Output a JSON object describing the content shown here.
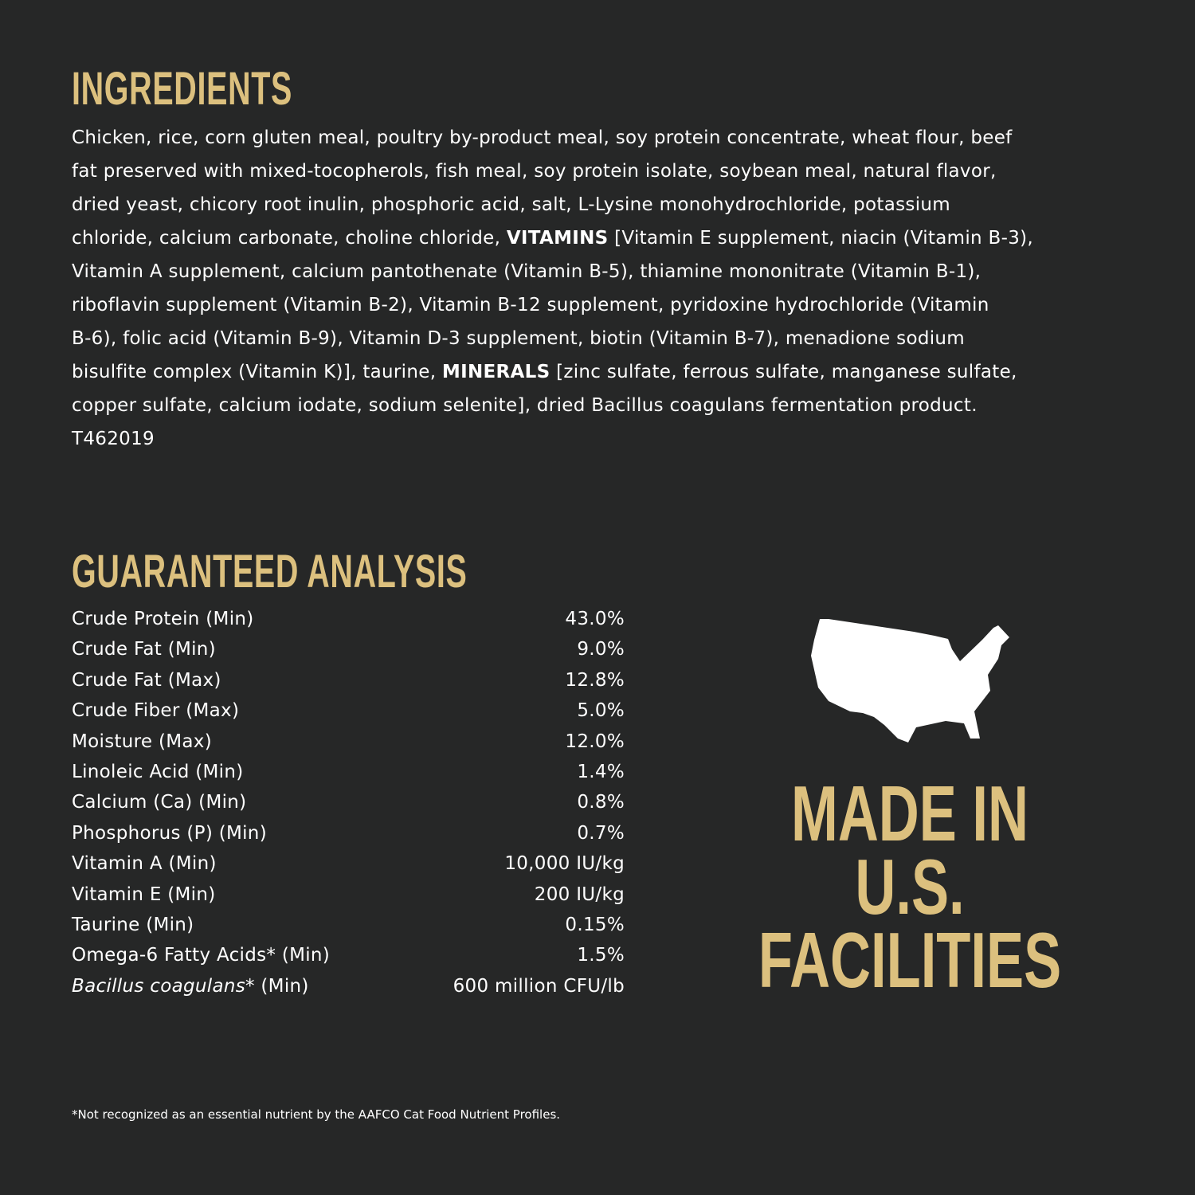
{
  "ingredients": {
    "title": "INGREDIENTS",
    "lines": [
      [
        {
          "t": "Chicken, rice, corn gluten meal, poultry by-product meal, soy protein concentrate, wheat flour, beef"
        }
      ],
      [
        {
          "t": "fat preserved with mixed-tocopherols, fish meal, soy protein isolate, soybean meal, natural flavor,"
        }
      ],
      [
        {
          "t": "dried yeast, chicory root inulin, phosphoric acid, salt, L-Lysine monohydrochloride, potassium"
        }
      ],
      [
        {
          "t": "chloride, calcium carbonate, choline chloride, "
        },
        {
          "t": "VITAMINS",
          "b": true
        },
        {
          "t": " [Vitamin E supplement, niacin (Vitamin B-3),"
        }
      ],
      [
        {
          "t": "Vitamin A supplement, calcium pantothenate (Vitamin B-5), thiamine mononitrate (Vitamin B-1),"
        }
      ],
      [
        {
          "t": "riboflavin supplement (Vitamin B-2), Vitamin B-12 supplement, pyridoxine hydrochloride (Vitamin"
        }
      ],
      [
        {
          "t": "B-6), folic acid (Vitamin B-9), Vitamin D-3 supplement, biotin (Vitamin B-7), menadione sodium"
        }
      ],
      [
        {
          "t": "bisulfite complex (Vitamin K)], taurine, "
        },
        {
          "t": "MINERALS",
          "b": true
        },
        {
          "t": " [zinc sulfate, ferrous sulfate, manganese sulfate,"
        }
      ],
      [
        {
          "t": "copper sulfate, calcium iodate, sodium selenite], dried Bacillus coagulans fermentation product."
        }
      ],
      [
        {
          "t": "T462019"
        }
      ]
    ]
  },
  "analysis": {
    "title": "GUARANTEED ANALYSIS",
    "rows": [
      {
        "label": "Crude Protein (Min)",
        "value": "43.0%"
      },
      {
        "label": "Crude Fat (Min)",
        "value": "9.0%"
      },
      {
        "label": "Crude Fat (Max)",
        "value": "12.8%"
      },
      {
        "label": "Crude Fiber (Max)",
        "value": "5.0%"
      },
      {
        "label": "Moisture (Max)",
        "value": "12.0%"
      },
      {
        "label": "Linoleic Acid (Min)",
        "value": "1.4%"
      },
      {
        "label": "Calcium (Ca) (Min)",
        "value": "0.8%"
      },
      {
        "label": "Phosphorus (P) (Min)",
        "value": "0.7%"
      },
      {
        "label": "Vitamin A (Min)",
        "value": "10,000 IU/kg"
      },
      {
        "label": "Vitamin E (Min)",
        "value": "200 IU/kg"
      },
      {
        "label": "Taurine (Min)",
        "value": "0.15%"
      },
      {
        "label": "Omega-6 Fatty Acids* (Min)",
        "value": "1.5%"
      },
      {
        "label": "Bacillus coagulans",
        "label_suffix": "* (Min)",
        "value": "600 million CFU/lb",
        "italic": true
      }
    ]
  },
  "badge": {
    "icon": "usa-map-icon",
    "lines": [
      "MADE IN",
      "U.S.",
      "FACILITIES"
    ]
  },
  "footnote": "*Not recognized as an essential nutrient by the AAFCO Cat Food Nutrient Profiles.",
  "colors": {
    "background": "#262727",
    "accent": "#dcc07e",
    "text": "#ffffff"
  }
}
